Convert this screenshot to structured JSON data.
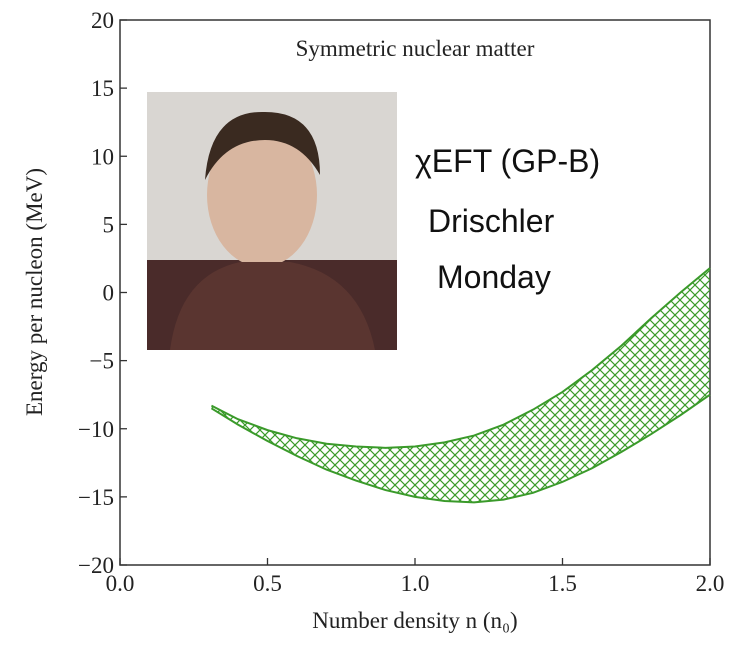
{
  "chart_data": {
    "type": "band",
    "title": "Symmetric nuclear matter",
    "x_label": "Number density n (n₀)",
    "y_label": "Energy per nucleon (MeV)",
    "x": [
      0.31,
      0.4,
      0.5,
      0.6,
      0.7,
      0.8,
      0.9,
      1.0,
      1.1,
      1.2,
      1.3,
      1.4,
      1.5,
      1.6,
      1.7,
      1.8,
      1.9,
      2.0
    ],
    "upper": [
      -8.3,
      -9.3,
      -10.1,
      -10.7,
      -11.1,
      -11.3,
      -11.4,
      -11.3,
      -11.0,
      -10.5,
      -9.7,
      -8.6,
      -7.3,
      -5.7,
      -3.9,
      -1.9,
      0.0,
      1.8
    ],
    "lower": [
      -8.5,
      -9.7,
      -10.9,
      -12.0,
      -13.0,
      -13.8,
      -14.5,
      -15.0,
      -15.3,
      -15.4,
      -15.2,
      -14.7,
      -13.9,
      -12.9,
      -11.7,
      -10.4,
      -9.0,
      -7.5
    ],
    "color": "#3a9a2a",
    "xlim": [
      0.0,
      2.0
    ],
    "xticks": [
      {
        "value": 0.0,
        "label": "0.0"
      },
      {
        "value": 0.5,
        "label": "0.5"
      },
      {
        "value": 1.0,
        "label": "1.0"
      },
      {
        "value": 1.5,
        "label": "1.5"
      },
      {
        "value": 2.0,
        "label": "2.0"
      }
    ],
    "ylim": [
      -20,
      20
    ],
    "yticks": [
      {
        "value": -20,
        "label": "−20"
      },
      {
        "value": -15,
        "label": "−15"
      },
      {
        "value": -10,
        "label": "−10"
      },
      {
        "value": -5,
        "label": "−5"
      },
      0,
      5,
      10,
      15,
      20
    ],
    "annotations": [
      "χEFT (GP-B)",
      "Drischler",
      "Monday"
    ]
  }
}
